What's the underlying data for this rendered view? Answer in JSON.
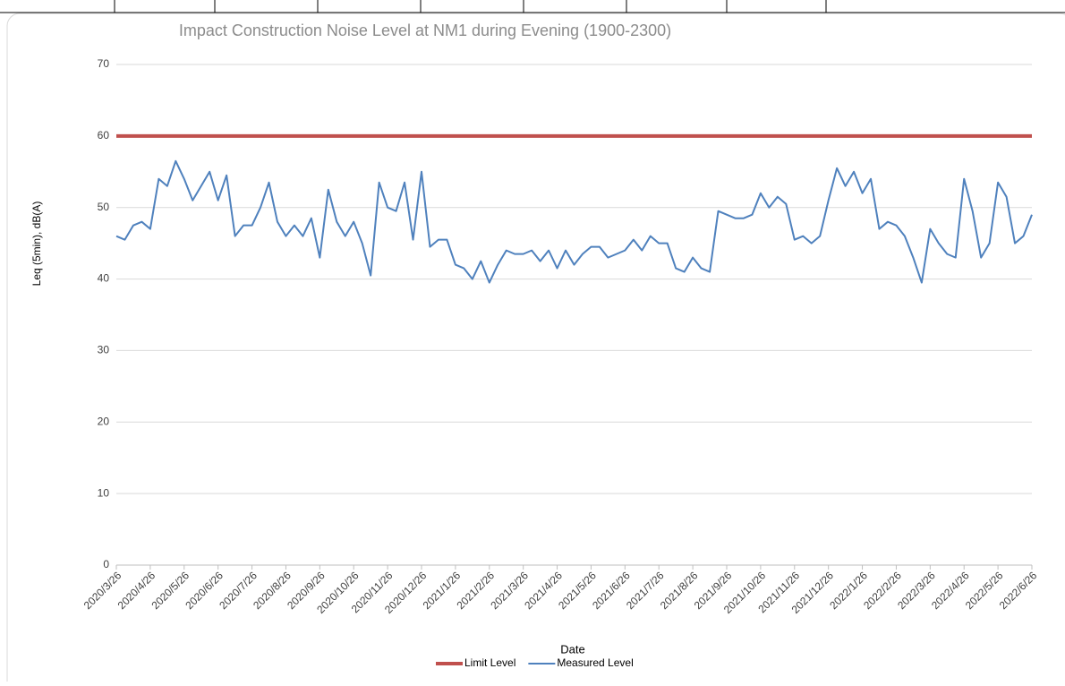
{
  "chart_data": {
    "type": "line",
    "title": "Impact Construction Noise Level at NM1 during Evening (1900-2300)",
    "x_label": "Date",
    "y_label": "Leq (5min), dB(A)",
    "categories": [
      "2020/3/26",
      null,
      null,
      null,
      "2020/4/26",
      null,
      null,
      null,
      "2020/5/26",
      null,
      null,
      null,
      "2020/6/26",
      null,
      null,
      null,
      "2020/7/26",
      null,
      null,
      null,
      "2020/8/26",
      null,
      null,
      null,
      "2020/9/26",
      null,
      null,
      null,
      "2020/10/26",
      null,
      null,
      null,
      "2020/11/26",
      null,
      null,
      null,
      "2020/12/26",
      null,
      null,
      null,
      "2021/1/26",
      null,
      null,
      null,
      "2021/2/26",
      null,
      null,
      null,
      "2021/3/26",
      null,
      null,
      null,
      "2021/4/26",
      null,
      null,
      null,
      "2021/5/26",
      null,
      null,
      null,
      "2021/6/26",
      null,
      null,
      null,
      "2021/7/26",
      null,
      null,
      null,
      "2021/8/26",
      null,
      null,
      null,
      "2021/9/26",
      null,
      null,
      null,
      "2021/10/26",
      null,
      null,
      null,
      "2021/11/26",
      null,
      null,
      null,
      "2021/12/26",
      null,
      null,
      null,
      "2022/1/26",
      null,
      null,
      null,
      "2022/2/26",
      null,
      null,
      null,
      "2022/3/26",
      null,
      null,
      null,
      "2022/4/26",
      null,
      null,
      null,
      "2022/5/26",
      null,
      null,
      null,
      "2022/6/26"
    ],
    "series": [
      {
        "name": "Limit Level",
        "color": "#c0504d",
        "width": 4,
        "values": [
          60,
          60,
          60,
          60,
          60,
          60,
          60,
          60,
          60,
          60,
          60,
          60,
          60,
          60,
          60,
          60,
          60,
          60,
          60,
          60,
          60,
          60,
          60,
          60,
          60,
          60,
          60,
          60,
          60,
          60,
          60,
          60,
          60,
          60,
          60,
          60,
          60,
          60,
          60,
          60,
          60,
          60,
          60,
          60,
          60,
          60,
          60,
          60,
          60,
          60,
          60,
          60,
          60,
          60,
          60,
          60,
          60,
          60,
          60,
          60,
          60,
          60,
          60,
          60,
          60,
          60,
          60,
          60,
          60,
          60,
          60,
          60,
          60,
          60,
          60,
          60,
          60,
          60,
          60,
          60,
          60,
          60,
          60,
          60,
          60,
          60,
          60,
          60,
          60,
          60,
          60,
          60,
          60,
          60,
          60,
          60,
          60,
          60,
          60,
          60,
          60,
          60,
          60,
          60,
          60,
          60,
          60,
          60,
          60
        ]
      },
      {
        "name": "Measured Level",
        "color": "#4f81bd",
        "width": 2,
        "values": [
          46,
          45.5,
          47.5,
          48,
          47,
          54,
          53,
          56.5,
          54,
          51,
          53,
          55,
          51,
          54.5,
          46,
          47.5,
          47.5,
          50,
          53.5,
          48,
          46,
          47.5,
          46,
          48.5,
          43,
          52.5,
          48,
          46,
          48,
          45,
          40.5,
          53.5,
          50,
          49.5,
          53.5,
          45.5,
          55,
          44.5,
          45.5,
          45.5,
          42,
          41.5,
          40,
          42.5,
          39.5,
          42,
          44,
          43.5,
          43.5,
          44,
          42.5,
          44,
          41.5,
          44,
          42,
          43.5,
          44.5,
          44.5,
          43,
          43.5,
          44,
          45.5,
          44,
          46,
          45,
          45,
          41.5,
          41,
          43,
          41.5,
          41,
          49.5,
          49,
          48.5,
          48.5,
          49,
          52,
          50,
          51.5,
          50.5,
          45.5,
          46,
          45,
          46,
          51,
          55.5,
          53,
          55,
          52,
          54,
          47,
          48,
          47.5,
          46,
          43,
          39.5,
          47,
          45,
          43.5,
          43,
          54,
          49.5,
          43,
          45,
          53.5,
          51.5,
          45,
          46,
          49
        ]
      }
    ],
    "ylim": [
      0,
      70
    ],
    "yticks": [
      0,
      10,
      20,
      30,
      40,
      50,
      60,
      70
    ],
    "grid": true,
    "legend": "bottom"
  }
}
